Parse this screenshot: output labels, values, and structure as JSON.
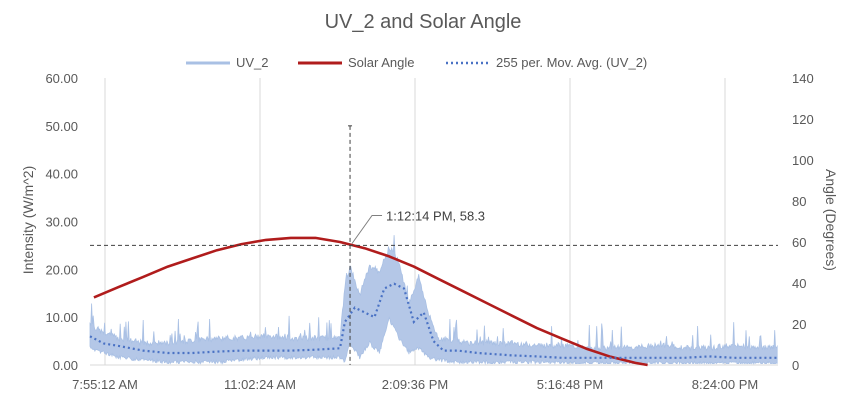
{
  "chart_data": {
    "type": "line",
    "title": "UV_2 and Solar Angle",
    "y_left_label": "Intensity (W/m^2)",
    "y_right_label": "Angle (Degrees)",
    "y_left_lim": [
      0,
      60
    ],
    "y_right_lim": [
      0,
      140
    ],
    "y_left_ticks": [
      "0.00",
      "10.00",
      "20.00",
      "30.00",
      "40.00",
      "50.00",
      "60.00"
    ],
    "y_right_ticks": [
      "0",
      "20",
      "40",
      "60",
      "80",
      "100",
      "120",
      "140"
    ],
    "x_ticks": [
      "7:55:12 AM",
      "11:02:24 AM",
      "2:09:36 PM",
      "5:16:48 PM",
      "8:24:00 PM"
    ],
    "x_range_hours": [
      7.92,
      21.9
    ],
    "gridlines": "vertical",
    "legend_position": "top",
    "legend": [
      {
        "name": "UV_2",
        "style": "solid-light",
        "color": "#a9c0e4"
      },
      {
        "name": "Solar Angle",
        "style": "solid-thick",
        "color": "#b01c1c"
      },
      {
        "name": "255 per. Mov. Avg. (UV_2)",
        "style": "dotted",
        "color": "#4a72c4"
      }
    ],
    "annotation": {
      "text": "1:12:14 PM, 58.3",
      "x_hour": 13.204,
      "y_angle": 58.3,
      "horizontal_ref_intensity": 25,
      "vertical_ref_top_intensity": 50
    },
    "series": [
      {
        "name": "Solar Angle",
        "axis": "right",
        "x_hour": [
          8.0,
          8.5,
          9.0,
          9.5,
          10.0,
          10.5,
          11.0,
          11.5,
          12.0,
          12.5,
          13.0,
          13.5,
          14.0,
          14.5,
          15.0,
          15.5,
          16.0,
          16.5,
          17.0,
          17.5,
          18.0,
          18.5,
          19.0,
          19.25
        ],
        "values": [
          33,
          38,
          43,
          48,
          52,
          56,
          59,
          61,
          62,
          62,
          60,
          57,
          53,
          48,
          42,
          36,
          30,
          24,
          18,
          13,
          8,
          4,
          1,
          0
        ]
      },
      {
        "name": "UV_2",
        "axis": "left",
        "x_hour": [
          7.92,
          8.2,
          8.5,
          9.0,
          9.5,
          10.0,
          10.5,
          11.0,
          11.5,
          12.0,
          12.5,
          13.0,
          13.1,
          13.2,
          13.4,
          13.6,
          13.8,
          14.0,
          14.2,
          14.4,
          14.6,
          14.8,
          15.0,
          15.3,
          15.6,
          16.0,
          16.5,
          17.0,
          17.5,
          18.0,
          18.5,
          19.0,
          19.5,
          20.0,
          20.5,
          21.0,
          21.5,
          21.9
        ],
        "values": [
          8,
          6,
          5,
          4,
          4,
          4.5,
          5,
          5,
          5.5,
          5,
          5,
          5,
          16,
          20,
          14,
          20,
          19,
          24,
          21,
          12,
          18,
          10,
          5,
          4.5,
          4,
          4,
          4,
          3.5,
          3.5,
          3,
          3,
          3,
          3.5,
          3,
          3,
          3.5,
          3,
          3
        ],
        "envelope_low": [
          4,
          3,
          2,
          1.5,
          1,
          1,
          1,
          1.5,
          2,
          2,
          2,
          2,
          1,
          5,
          2,
          5,
          3,
          10,
          6,
          3,
          4,
          2,
          1.5,
          1,
          1,
          1,
          1,
          1,
          0.8,
          0.8,
          0.8,
          0.8,
          0.8,
          0.8,
          0.8,
          0.8,
          0.8,
          0.8
        ]
      },
      {
        "name": "255 per. Mov. Avg. (UV_2)",
        "axis": "left",
        "x_hour": [
          7.92,
          8.2,
          8.5,
          9.0,
          9.5,
          10.0,
          10.5,
          11.0,
          11.5,
          12.0,
          12.5,
          13.0,
          13.1,
          13.3,
          13.5,
          13.7,
          13.9,
          14.1,
          14.3,
          14.5,
          14.7,
          14.9,
          15.1,
          15.4,
          15.8,
          16.5,
          17.0,
          17.5,
          18.0,
          18.5,
          19.0,
          19.5,
          20.0,
          20.5,
          21.0,
          21.5,
          21.9
        ],
        "values": [
          6,
          4.5,
          4,
          3,
          2.5,
          2.5,
          2.8,
          3,
          3,
          3,
          3.2,
          3.5,
          9,
          12,
          11,
          10,
          16,
          17,
          16,
          9,
          11,
          5,
          3,
          3,
          2.5,
          2,
          1.8,
          1.5,
          1.5,
          1.5,
          1.5,
          1.5,
          1.5,
          1.8,
          1.5,
          1.5,
          1.5
        ]
      }
    ]
  }
}
